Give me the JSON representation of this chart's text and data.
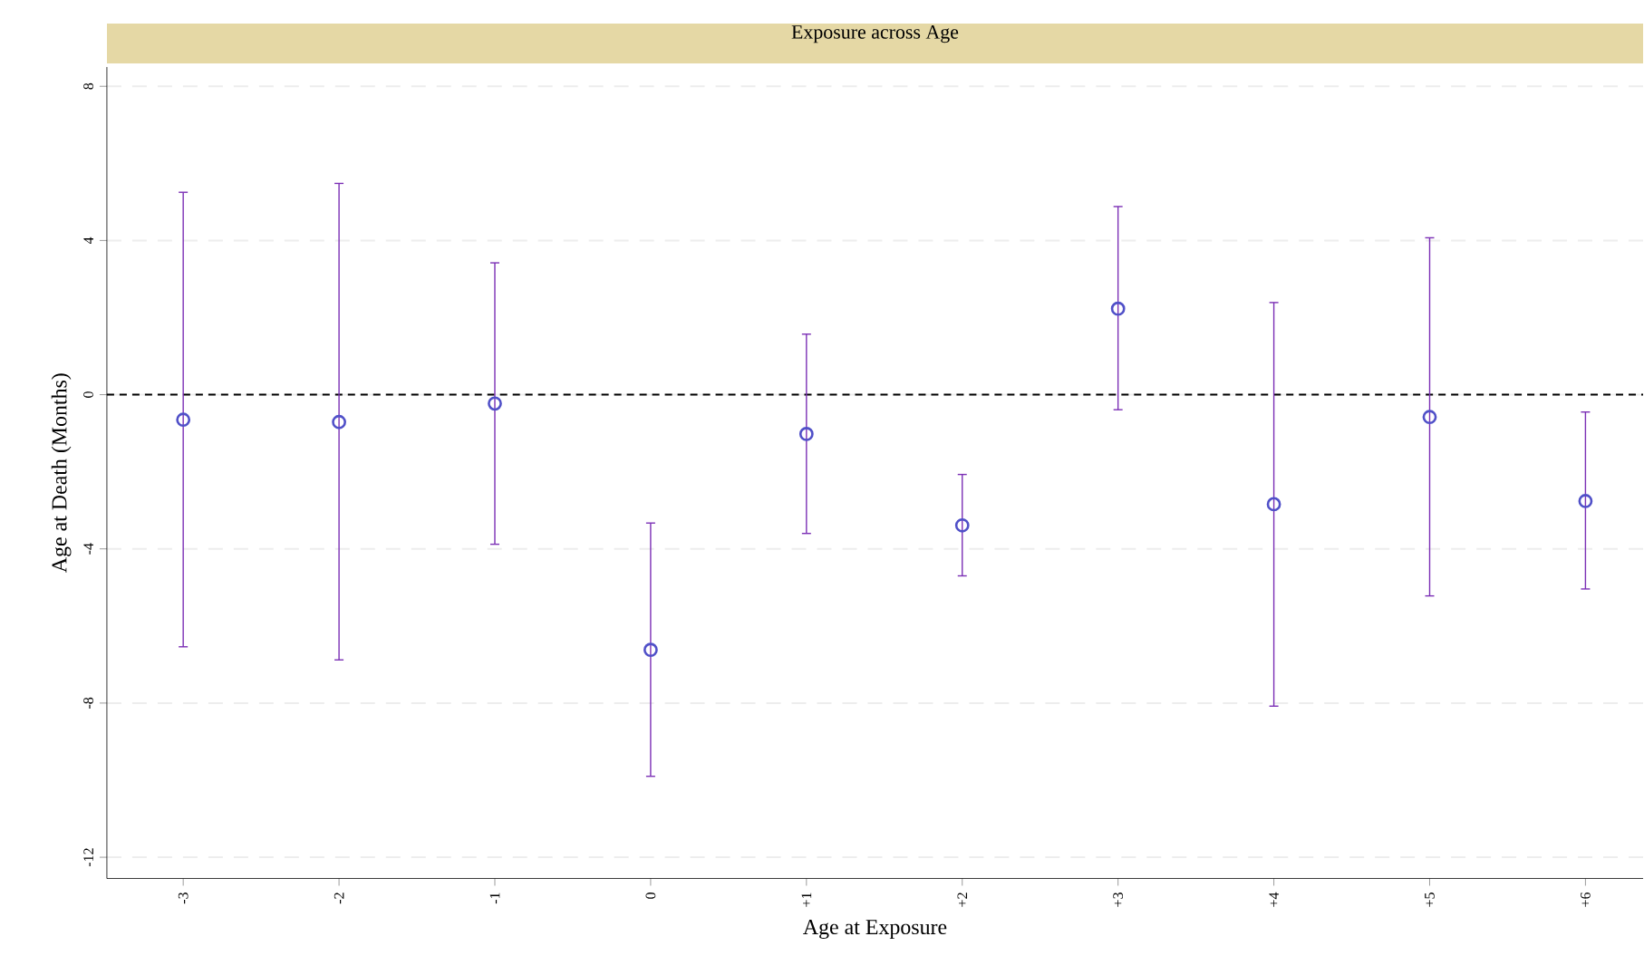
{
  "chart_data": {
    "type": "scatter",
    "title": "Exposure across Age",
    "xlabel": "Age at Exposure",
    "ylabel": "Age at Death (Months)",
    "categories": [
      "-3",
      "-2",
      "-1",
      "0",
      "+1",
      "+2",
      "+3",
      "+4",
      "+5",
      "+6"
    ],
    "series": [
      {
        "color": "#5050c8",
        "values": [
          -0.65,
          -0.71,
          -0.23,
          -6.62,
          -1.02,
          -3.39,
          2.23,
          -2.84,
          -0.58,
          -2.76
        ],
        "errors": [
          [
            -6.54,
            5.25
          ],
          [
            -6.88,
            5.48
          ],
          [
            -3.88,
            3.42
          ],
          [
            -9.9,
            -3.33
          ],
          [
            -3.6,
            1.57
          ],
          [
            -4.7,
            -2.07
          ],
          [
            -0.39,
            4.88
          ],
          [
            -8.08,
            2.39
          ],
          [
            -5.22,
            4.07
          ],
          [
            -5.04,
            -0.45
          ]
        ]
      }
    ],
    "ylim": [
      -12.55,
      8.5
    ],
    "yticks": [
      -12,
      -8,
      -4,
      0,
      4,
      8
    ],
    "grid": "y",
    "marker": "circle",
    "ref_lines": [
      {
        "axis": "y",
        "value": 0,
        "color": "#000000",
        "line_style": "dashed"
      }
    ]
  }
}
